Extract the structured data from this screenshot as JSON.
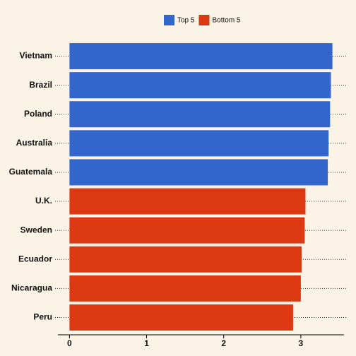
{
  "chart_data": {
    "type": "hbar",
    "categories": [
      "Vietnam",
      "Brazil",
      "Poland",
      "Australia",
      "Guatemala",
      "U.K.",
      "Sweden",
      "Ecuador",
      "Nicaragua",
      "Peru"
    ],
    "series": [
      {
        "name": "Top 5",
        "color": "#3366cc",
        "values": [
          3.41,
          3.39,
          3.38,
          3.36,
          3.35,
          null,
          null,
          null,
          null,
          null
        ]
      },
      {
        "name": "Bottom 5",
        "color": "#dc3912",
        "values": [
          null,
          null,
          null,
          null,
          null,
          3.06,
          3.05,
          3.01,
          3.0,
          2.9
        ]
      }
    ],
    "xlim": [
      -0.15,
      3.56
    ],
    "xticks": [
      0,
      1,
      2,
      3
    ],
    "legend": "top"
  }
}
